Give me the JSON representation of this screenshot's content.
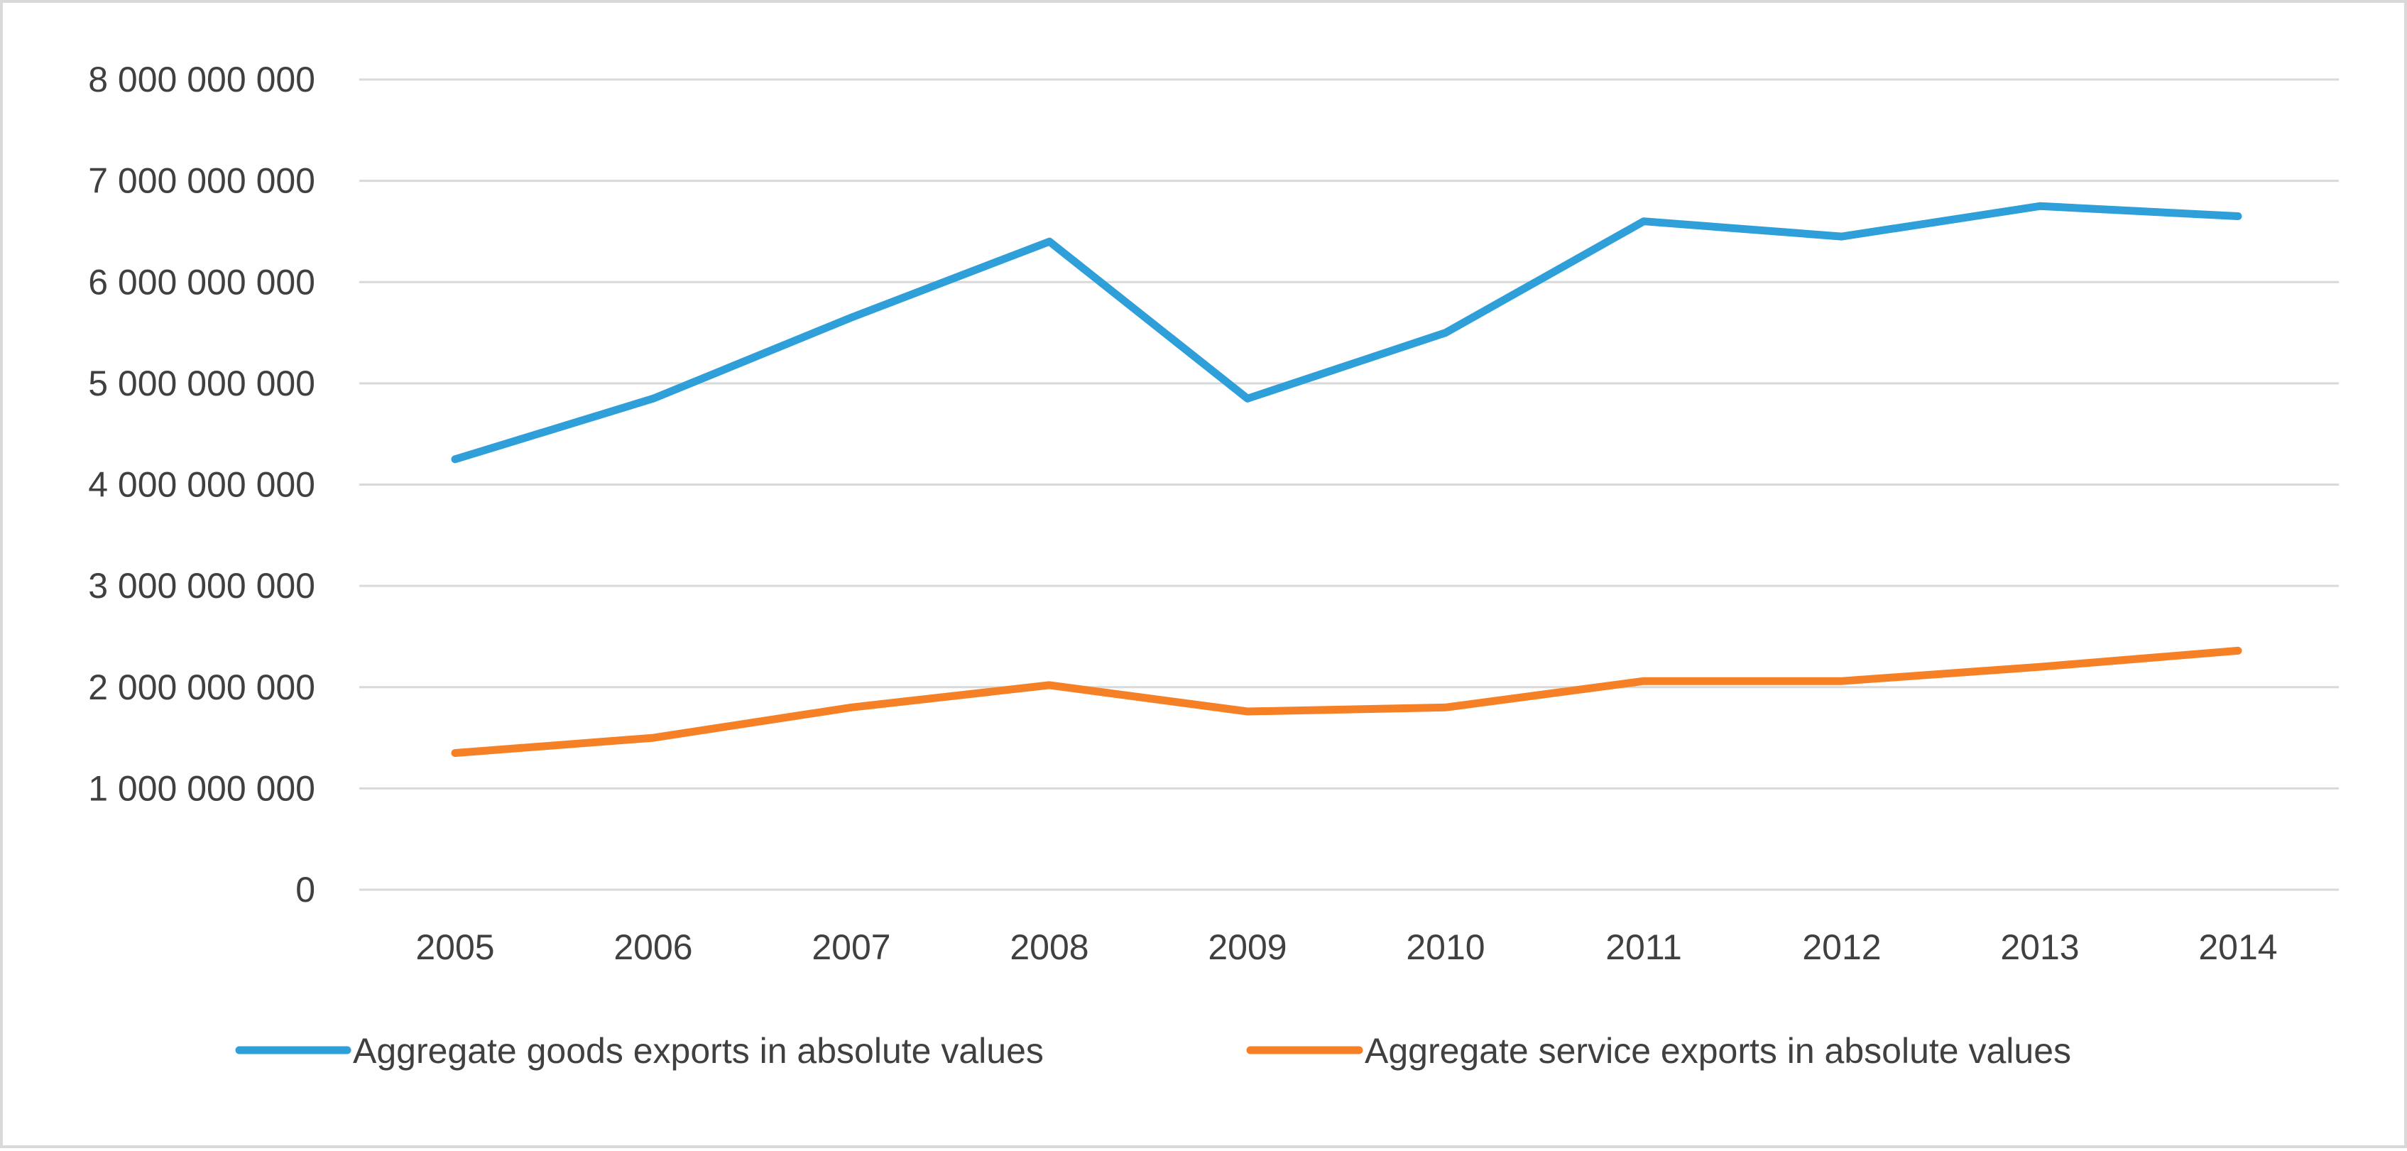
{
  "chart_data": {
    "type": "line",
    "title": "",
    "xlabel": "",
    "ylabel": "",
    "categories": [
      "2005",
      "2006",
      "2007",
      "2008",
      "2009",
      "2010",
      "2011",
      "2012",
      "2013",
      "2014"
    ],
    "y_ticks": [
      0,
      1000000000,
      2000000000,
      3000000000,
      4000000000,
      5000000000,
      6000000000,
      7000000000,
      8000000000
    ],
    "y_tick_labels": [
      "0",
      "1 000 000 000",
      "2 000 000 000",
      "3 000 000 000",
      "4 000 000 000",
      "5 000 000 000",
      "6 000 000 000",
      "7 000 000 000",
      "8 000 000 000"
    ],
    "ylim": [
      0,
      8000000000
    ],
    "grid": true,
    "legend_position": "bottom",
    "series": [
      {
        "name": "Aggregate goods exports in absolute values",
        "color": "#2e9fd8",
        "values": [
          4250000000,
          4850000000,
          5650000000,
          6400000000,
          4850000000,
          5500000000,
          6600000000,
          6450000000,
          6750000000,
          6650000000
        ]
      },
      {
        "name": "Aggregate service exports in absolute values",
        "color": "#f58025",
        "values": [
          1350000000,
          1500000000,
          1800000000,
          2020000000,
          1760000000,
          1800000000,
          2060000000,
          2060000000,
          2200000000,
          2360000000
        ]
      }
    ],
    "gridline_color": "#d9d9d9"
  }
}
